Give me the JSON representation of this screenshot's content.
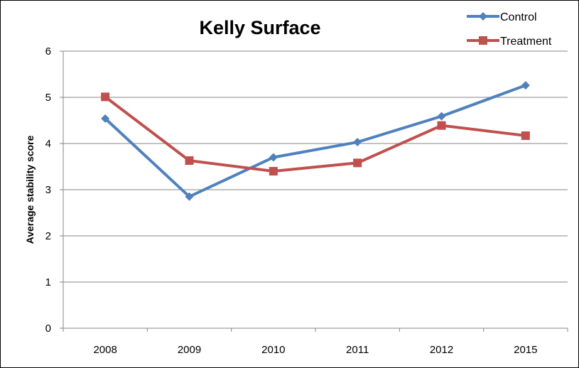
{
  "chart_data": {
    "type": "line",
    "title": "Kelly Surface",
    "xlabel": "",
    "ylabel": "Average stability score",
    "categories": [
      "2008",
      "2009",
      "2010",
      "2011",
      "2012",
      "2015"
    ],
    "ylim": [
      0,
      6
    ],
    "yticks": [
      0,
      1,
      2,
      3,
      4,
      5,
      6
    ],
    "grid": true,
    "legend_position": "top-right",
    "series": [
      {
        "name": "Control",
        "color": "#4F81BD",
        "marker": "diamond",
        "values": [
          4.54,
          2.85,
          3.7,
          4.03,
          4.59,
          5.26
        ]
      },
      {
        "name": "Treatment",
        "color": "#C0504D",
        "marker": "square",
        "values": [
          5.01,
          3.63,
          3.4,
          3.58,
          4.39,
          4.17
        ]
      }
    ]
  }
}
